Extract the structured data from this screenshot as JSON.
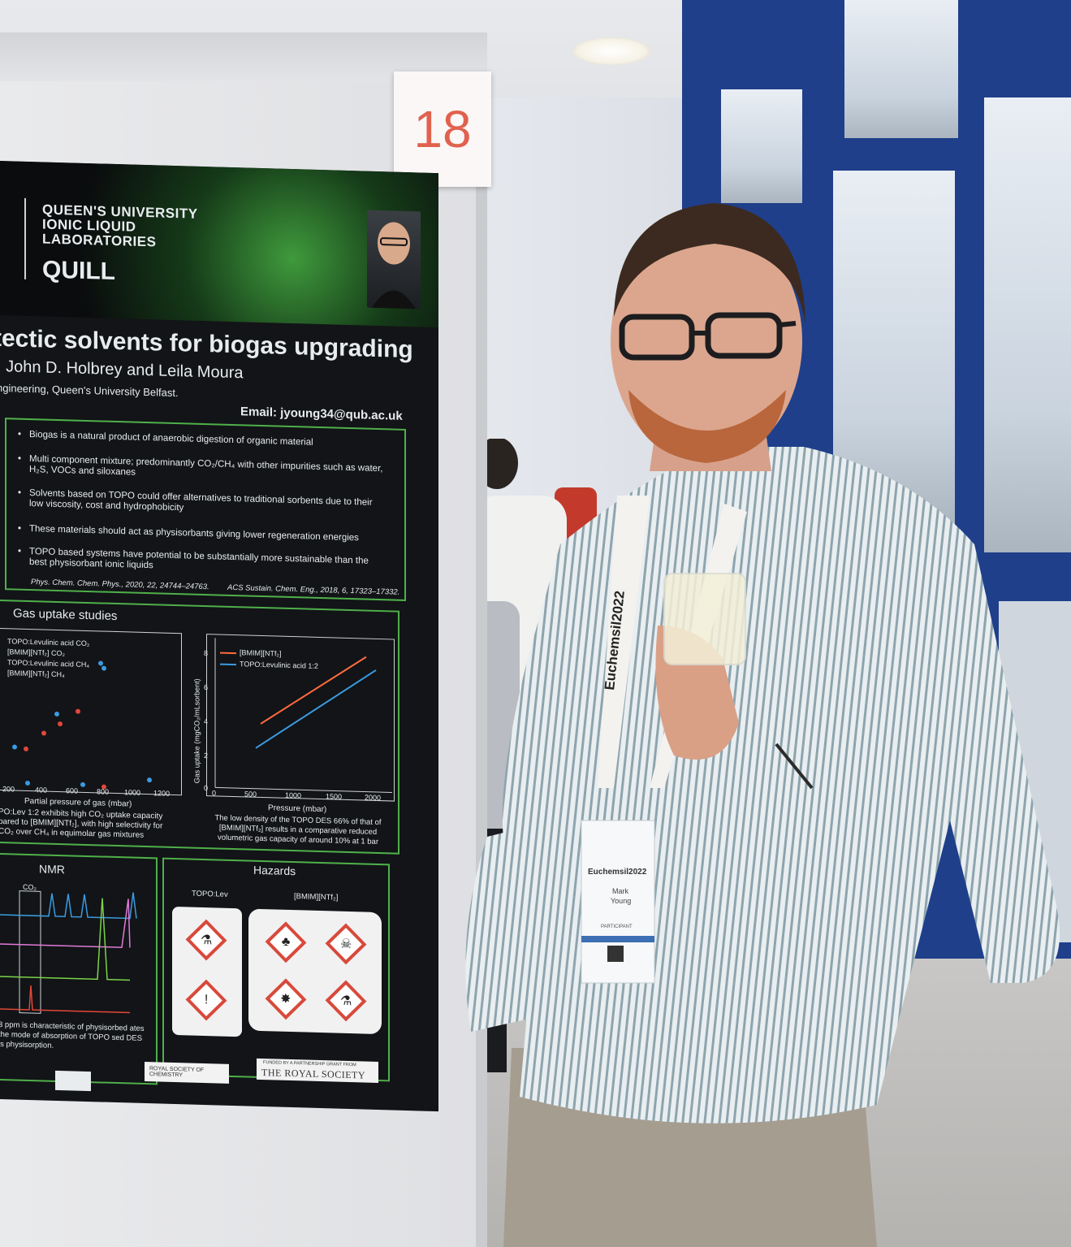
{
  "board": {
    "number": "18"
  },
  "poster": {
    "header_lines": [
      "QUEEN'S UNIVERSITY",
      "IONIC LIQUID",
      "LABORATORIES"
    ],
    "logo": "QUILL",
    "title": "tectic solvents for biogas upgrading",
    "authors": ", John D. Holbrey and Leila Moura",
    "affiliation": "ngineering, Queen's University Belfast.",
    "email": "Email: jyoung34@qub.ac.uk",
    "bullets": [
      "Biogas is a natural product of anaerobic digestion of organic material",
      "Multi component mixture; predominantly CO₂/CH₄ with other impurities such as water, H₂S, VOCs and siloxanes",
      "Solvents based on TOPO could offer alternatives to traditional sorbents due to their low viscosity, cost and hydrophobicity",
      "These materials should act as physisorbants giving lower regeneration energies",
      "TOPO based systems have potential to be substantially more sustainable than the best physisorbant ionic liquids"
    ],
    "ref_a": "Phys. Chem. Chem. Phys., 2020, 22, 24744–24763.",
    "ref_b": "ACS Sustain. Chem. Eng., 2018, 6, 17323–17332.",
    "gas_heading": "Gas uptake studies",
    "left_legend": [
      "TOPO:Levulinic acid CO₂",
      "[BMIM][NTf₂] CO₂",
      "TOPO:Levulinic acid CH₄",
      "[BMIM][NTf₂] CH₄"
    ],
    "left_xticks": [
      "200",
      "400",
      "600",
      "800",
      "1000",
      "1200"
    ],
    "left_xlabel": "Partial pressure of gas (mbar)",
    "left_caption": "PO:Lev 1:2 exhibits high CO₂ uptake capacity pared to [BMIM][NTf₂], with high selectivity for CO₂ over CH₄ in equimolar gas mixtures",
    "right_legend": [
      "[BMIM][NTf₂]",
      "TOPO:Levulinic acid 1:2"
    ],
    "right_yticks": [
      "8",
      "6",
      "4",
      "2",
      "0"
    ],
    "right_xticks": [
      "0",
      "500",
      "1000",
      "1500",
      "2000"
    ],
    "right_xlabel": "Pressure (mbar)",
    "right_ylabel": "Gas uptake (mgCO₂/mLsorbent)",
    "right_caption": "The low density of the TOPO DES 66% of that of [BMIM][NTf₂] results in a comparative reduced volumetric gas capacity of around 10% at 1 bar",
    "nmr_heading": "NMR",
    "nmr_co2": "CO₂",
    "nmr_caption": "3 ppm is characteristic of physisorbed ates the mode of absorption of TOPO sed DES is physisorption.",
    "haz_heading": "Hazards",
    "haz_topo": "TOPO:Lev",
    "haz_bmim": "[BMIM][NTf₂]",
    "rsc": "ROYAL SOCIETY OF CHEMISTRY",
    "royal_small": "FUNDED BY A PARTNERSHIP GRANT FROM",
    "royal_big": "THE ROYAL SOCIETY"
  },
  "lanyard": {
    "text": "Euchemsil2022"
  },
  "badge": {
    "event": "Euchemsil2022",
    "name_first": "Mark",
    "name_last": "Young",
    "role": "PARTICIPANT"
  },
  "colors": {
    "accent_green": "#4fb04a",
    "number_red": "#e0624e",
    "series_orange": "#ff6a3d",
    "series_blue": "#3a9be0"
  }
}
